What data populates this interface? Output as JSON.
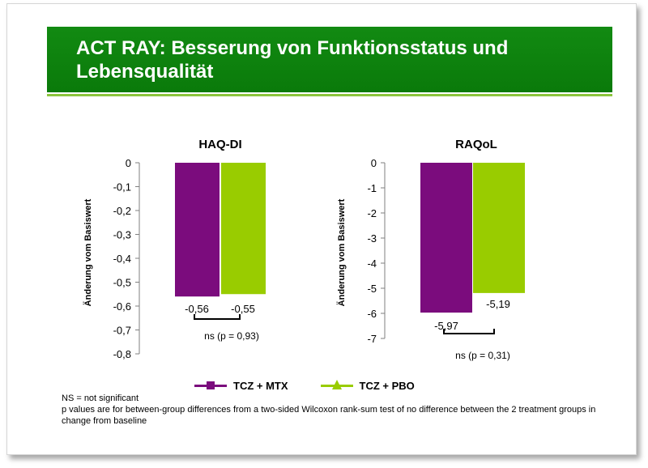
{
  "title": "ACT RAY: Besserung von Funktionsstatus und Lebensqualität",
  "chart_data": [
    {
      "type": "bar",
      "title": "HAQ-DI",
      "ylabel": "Änderung vom Basiswert",
      "ylim": [
        -0.8,
        0
      ],
      "yticks": [
        "0",
        "-0,1",
        "-0,2",
        "-0,3",
        "-0,4",
        "-0,5",
        "-0,6",
        "-0,7",
        "-0,8"
      ],
      "ytick_values": [
        0,
        -0.1,
        -0.2,
        -0.3,
        -0.4,
        -0.5,
        -0.6,
        -0.7,
        -0.8
      ],
      "series": [
        {
          "name": "TCZ + MTX",
          "value": -0.56,
          "label": "-0,56",
          "color": "#7b0c7d"
        },
        {
          "name": "TCZ + PBO",
          "value": -0.55,
          "label": "-0,55",
          "color": "#99cc00"
        }
      ],
      "annotation": "ns (p = 0,93)"
    },
    {
      "type": "bar",
      "title": "RAQoL",
      "ylabel": "Änderung vom Basiswert",
      "ylim": [
        -7,
        0
      ],
      "yticks": [
        "0",
        "-1",
        "-2",
        "-3",
        "-4",
        "-5",
        "-6",
        "-7"
      ],
      "ytick_values": [
        0,
        -1,
        -2,
        -3,
        -4,
        -5,
        -6,
        -7
      ],
      "series": [
        {
          "name": "TCZ + MTX",
          "value": -5.97,
          "label": "-5,97",
          "color": "#7b0c7d"
        },
        {
          "name": "TCZ + PBO",
          "value": -5.19,
          "label": "-5,19",
          "color": "#99cc00"
        }
      ],
      "annotation": "ns (p = 0,31)"
    }
  ],
  "legend": [
    {
      "name": "TCZ + MTX",
      "color": "#7b0c7d",
      "marker": "square"
    },
    {
      "name": "TCZ + PBO",
      "color": "#99cc00",
      "marker": "triangle"
    }
  ],
  "footnotes": {
    "line1": "NS = not significant",
    "line2": "p values are for between-group differences from a two-sided Wilcoxon rank-sum test of no difference between the 2 treatment groups in change from baseline"
  }
}
